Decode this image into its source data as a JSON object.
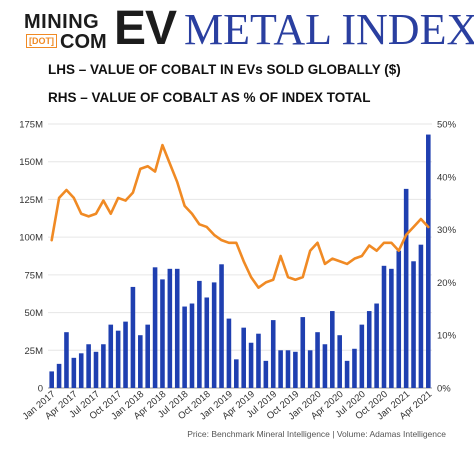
{
  "header": {
    "logo_top": "MINING",
    "logo_dot": "[DOT]",
    "logo_com": "COM",
    "title_ev": "EV",
    "title_rest": "METAL INDEX",
    "subtitle_lhs": "LHS – VALUE OF COBALT IN EVs SOLD GLOBALLY ($)",
    "subtitle_rhs": "RHS – VALUE OF COBALT AS % OF INDEX TOTAL"
  },
  "colors": {
    "bar": "#1f3fb0",
    "line": "#f08a24",
    "title_blue": "#2a3fa0"
  },
  "chart_data": {
    "type": "bar",
    "title": "",
    "xlabel": "",
    "ylabel": "",
    "ylim": [
      0,
      175
    ],
    "y2lim": [
      0,
      50
    ],
    "y_ticks": [
      "0",
      "25M",
      "50M",
      "75M",
      "100M",
      "125M",
      "150M",
      "175M"
    ],
    "y2_ticks": [
      "0%",
      "10%",
      "20%",
      "30%",
      "40%",
      "50%"
    ],
    "x_tick_labels": [
      "Jan 2017",
      "Apr 2017",
      "Jul 2017",
      "Oct 2017",
      "Jan 2018",
      "Apr 2018",
      "Jul 2018",
      "Oct 2018",
      "Jan 2019",
      "Apr 2019",
      "Jul 2019",
      "Oct 2019",
      "Jan 2020",
      "Apr 2020",
      "Jul 2020",
      "Oct 2020",
      "Jan 2021",
      "Apr 2021"
    ],
    "categories": [
      "Jan 2017",
      "Feb 2017",
      "Mar 2017",
      "Apr 2017",
      "May 2017",
      "Jun 2017",
      "Jul 2017",
      "Aug 2017",
      "Sep 2017",
      "Oct 2017",
      "Nov 2017",
      "Dec 2017",
      "Jan 2018",
      "Feb 2018",
      "Mar 2018",
      "Apr 2018",
      "May 2018",
      "Jun 2018",
      "Jul 2018",
      "Aug 2018",
      "Sep 2018",
      "Oct 2018",
      "Nov 2018",
      "Dec 2018",
      "Jan 2019",
      "Feb 2019",
      "Mar 2019",
      "Apr 2019",
      "May 2019",
      "Jun 2019",
      "Jul 2019",
      "Aug 2019",
      "Sep 2019",
      "Oct 2019",
      "Nov 2019",
      "Dec 2019",
      "Jan 2020",
      "Feb 2020",
      "Mar 2020",
      "Apr 2020",
      "May 2020",
      "Jun 2020",
      "Jul 2020",
      "Aug 2020",
      "Sep 2020",
      "Oct 2020",
      "Nov 2020",
      "Dec 2020",
      "Jan 2021",
      "Feb 2021",
      "Mar 2021",
      "Apr 2021"
    ],
    "series": [
      {
        "axis": "left",
        "kind": "bar",
        "values": [
          11,
          16,
          37,
          20,
          23,
          29,
          24,
          29,
          42,
          38,
          44,
          67,
          35,
          42,
          80,
          72,
          79,
          79,
          54,
          56,
          71,
          60,
          70,
          82,
          46,
          19,
          40,
          30,
          36,
          18,
          45,
          25,
          25,
          24,
          47,
          25,
          37,
          29,
          51,
          35,
          18,
          26,
          42,
          51,
          56,
          81,
          79,
          91,
          132,
          84,
          95,
          168
        ]
      },
      {
        "axis": "right",
        "kind": "line",
        "values": [
          28,
          36,
          37.5,
          36,
          33,
          32.5,
          33,
          35.5,
          33,
          36,
          35.5,
          37,
          41.5,
          42,
          41,
          46,
          42.5,
          39,
          34.5,
          33,
          31,
          30.5,
          29,
          28,
          27.5,
          27.5,
          24,
          21,
          19,
          20,
          20.5,
          25,
          21,
          20.5,
          21,
          26,
          27.5,
          23.5,
          24.5,
          24,
          23.5,
          24.5,
          25,
          27,
          26,
          27.5,
          27.5,
          26,
          29,
          30.5,
          32,
          30.5
        ]
      }
    ],
    "source": "Price: Benchmark Mineral Intelligence | Volume: Adamas Intelligence"
  }
}
